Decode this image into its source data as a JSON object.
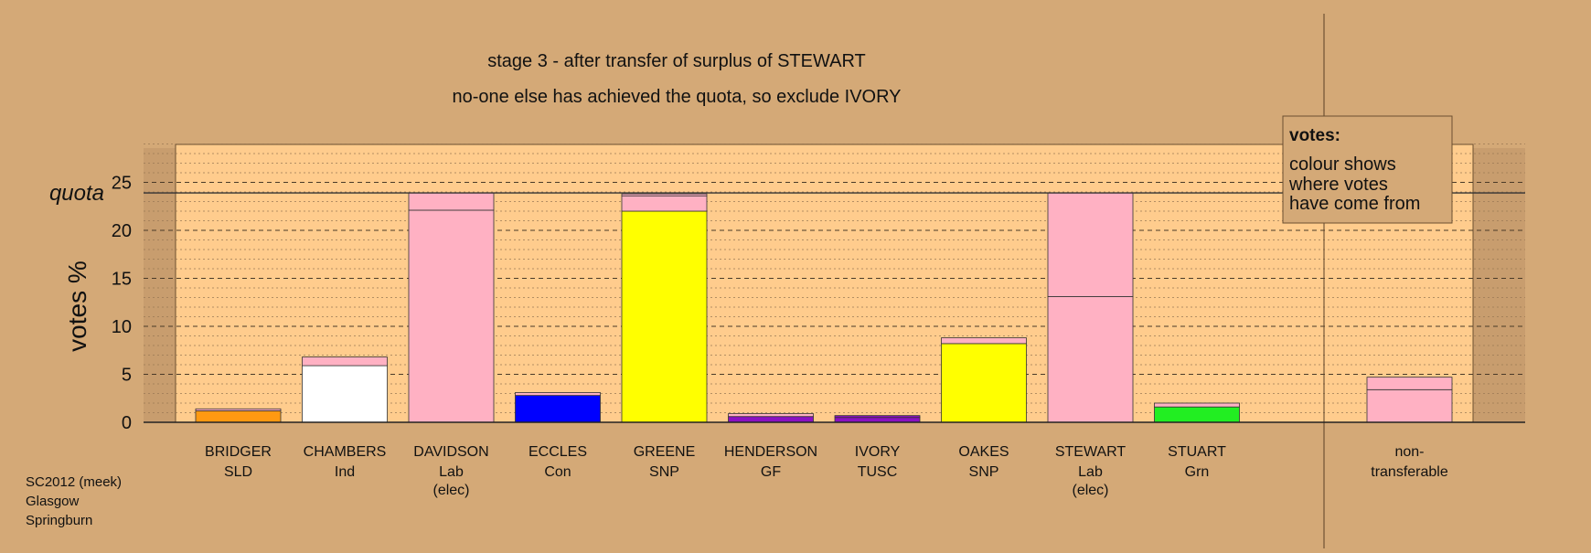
{
  "chart_data": {
    "type": "bar",
    "stacked": true,
    "title": "stage 3 - after transfer of surplus of STEWART",
    "subtitle": "no-one else has achieved the quota, so exclude IVORY",
    "ylabel": "votes %",
    "ylim": [
      0,
      29
    ],
    "yticks": [
      0,
      5,
      10,
      15,
      20,
      25
    ],
    "grid": true,
    "quota": {
      "label": "quota",
      "value": 23.9
    },
    "legend": {
      "title": "votes:",
      "lines": [
        "colour shows",
        "where votes",
        "have come from"
      ]
    },
    "candidates": [
      {
        "name": "BRIDGER",
        "party": "SLD",
        "note": "",
        "segments": [
          {
            "value": 1.2,
            "color": "#ff9911"
          },
          {
            "value": 0.2,
            "color": "#ffb1c3"
          }
        ]
      },
      {
        "name": "CHAMBERS",
        "party": "Ind",
        "note": "",
        "segments": [
          {
            "value": 5.9,
            "color": "#ffffff"
          },
          {
            "value": 0.9,
            "color": "#ffb1c3"
          }
        ]
      },
      {
        "name": "DAVIDSON",
        "party": "Lab",
        "note": "(elec)",
        "segments": [
          {
            "value": 22.1,
            "color": "#ffb1c3"
          },
          {
            "value": 1.8,
            "color": "#ffb1c3"
          }
        ]
      },
      {
        "name": "ECCLES",
        "party": "Con",
        "note": "",
        "segments": [
          {
            "value": 2.8,
            "color": "#0000ff"
          },
          {
            "value": 0.3,
            "color": "#ffb1c3"
          }
        ]
      },
      {
        "name": "GREENE",
        "party": "SNP",
        "note": "",
        "segments": [
          {
            "value": 22.0,
            "color": "#ffff00"
          },
          {
            "value": 1.6,
            "color": "#ffb1c3"
          },
          {
            "value": 0.2,
            "color": "#ffb1c3"
          }
        ]
      },
      {
        "name": "HENDERSON",
        "party": "GF",
        "note": "",
        "segments": [
          {
            "value": 0.6,
            "color": "#8a11c2"
          },
          {
            "value": 0.3,
            "color": "#ffb1c3"
          }
        ]
      },
      {
        "name": "IVORY",
        "party": "TUSC",
        "note": "",
        "segments": [
          {
            "value": 0.5,
            "color": "#8a11c2"
          },
          {
            "value": 0.2,
            "color": "#8a11c2"
          }
        ]
      },
      {
        "name": "OAKES",
        "party": "SNP",
        "note": "",
        "segments": [
          {
            "value": 8.2,
            "color": "#ffff00"
          },
          {
            "value": 0.6,
            "color": "#ffb1c3"
          }
        ]
      },
      {
        "name": "STEWART",
        "party": "Lab",
        "note": "(elec)",
        "segments": [
          {
            "value": 13.1,
            "color": "#ffb1c3"
          },
          {
            "value": 10.8,
            "color": "#ffb1c3"
          }
        ]
      },
      {
        "name": "STUART",
        "party": "Grn",
        "note": "",
        "segments": [
          {
            "value": 1.6,
            "color": "#22ee22"
          },
          {
            "value": 0.4,
            "color": "#ffb1c3"
          }
        ]
      }
    ],
    "nontransferable": {
      "label_line1": "non-",
      "label_line2": "transferable",
      "segments": [
        {
          "value": 3.4,
          "color": "#ffb1c3"
        },
        {
          "value": 1.3,
          "color": "#ffb1c3"
        }
      ]
    }
  },
  "footer": {
    "line1": "SC2012 (meek)",
    "line2": "Glasgow",
    "line3": "Springburn"
  }
}
